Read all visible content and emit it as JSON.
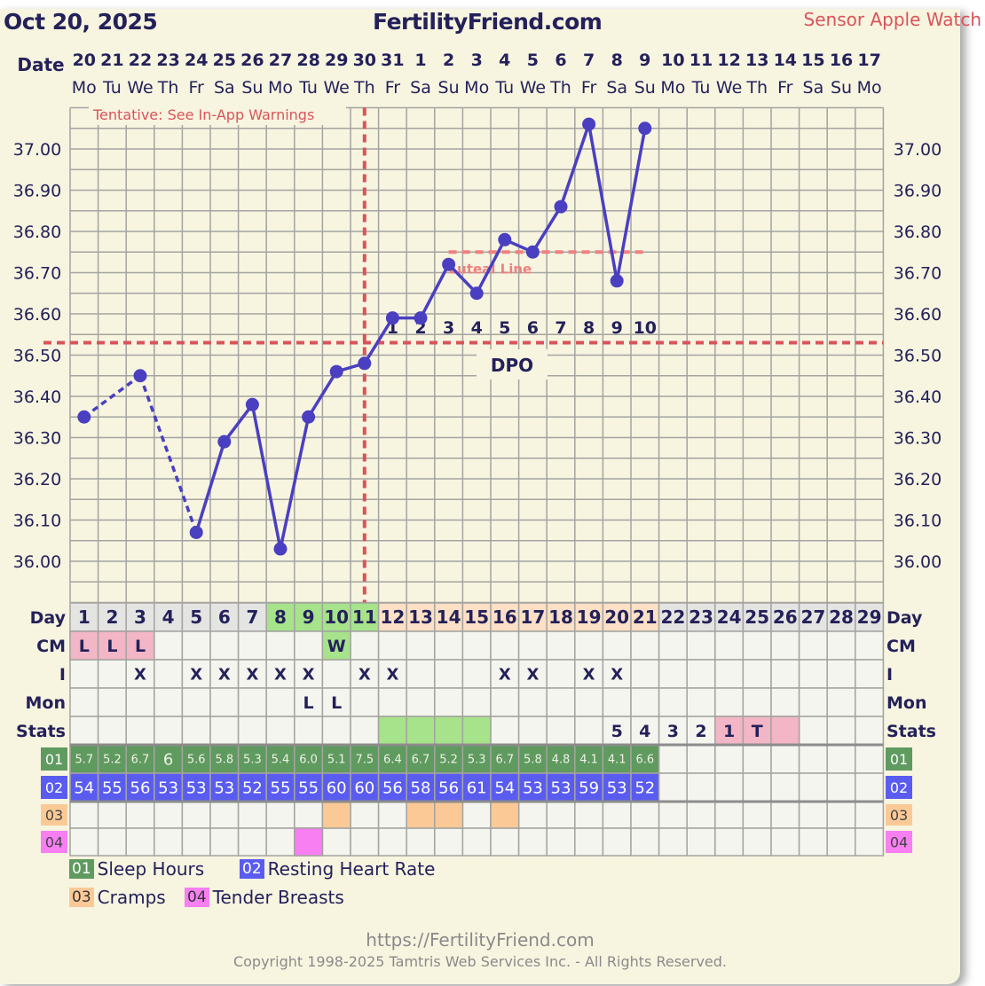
{
  "header": {
    "date": "Oct 20, 2025",
    "site": "FertilityFriend.com",
    "sensor": "Sensor Apple Watch"
  },
  "labels": {
    "date": "Date",
    "day": "Day",
    "cm": "CM",
    "i": "I",
    "mon": "Mon",
    "stats": "Stats",
    "tentative": "Tentative: See In-App Warnings",
    "luteal": "Luteal Line",
    "dpo": "DPO"
  },
  "colors": {
    "line": "#4a3fc0",
    "text": "#24215a",
    "coverline": "#d9545a",
    "luteal": "#f08080",
    "fertile": "#a6e38a",
    "luteal_phase": "#fde0c5",
    "period": "#f2b6c6",
    "sleep": "#5f9a5f",
    "heart": "#5a5cf0",
    "cramps": "#fbc996",
    "tender": "#f77ff2"
  },
  "chart_data": {
    "type": "line",
    "ylim": [
      35.9,
      37.1
    ],
    "yticks": [
      "36.00",
      "36.10",
      "36.20",
      "36.30",
      "36.40",
      "36.50",
      "36.60",
      "36.70",
      "36.80",
      "36.90",
      "37.00"
    ],
    "dates": [
      "20",
      "21",
      "22",
      "23",
      "24",
      "25",
      "26",
      "27",
      "28",
      "29",
      "30",
      "31",
      "1",
      "2",
      "3",
      "4",
      "5",
      "6",
      "7",
      "8",
      "9",
      "10",
      "11",
      "12",
      "13",
      "14",
      "15",
      "16",
      "17"
    ],
    "weekdays": [
      "Mo",
      "Tu",
      "We",
      "Th",
      "Fr",
      "Sa",
      "Su",
      "Mo",
      "Tu",
      "We",
      "Th",
      "Fr",
      "Sa",
      "Su",
      "Mo",
      "Tu",
      "We",
      "Th",
      "Fr",
      "Sa",
      "Su",
      "Mo",
      "Tu",
      "We",
      "Th",
      "Fr",
      "Sa",
      "Su",
      "Mo"
    ],
    "cycle_days": [
      1,
      2,
      3,
      4,
      5,
      6,
      7,
      8,
      9,
      10,
      11,
      12,
      13,
      14,
      15,
      16,
      17,
      18,
      19,
      20,
      21,
      22,
      23,
      24,
      25,
      26,
      27,
      28,
      29
    ],
    "temperatures": [
      36.35,
      null,
      36.45,
      null,
      36.07,
      36.29,
      36.38,
      36.03,
      36.35,
      36.46,
      36.48,
      36.59,
      36.59,
      36.72,
      36.65,
      36.78,
      36.75,
      36.86,
      37.06,
      36.68,
      37.05,
      null,
      null,
      null,
      null,
      null,
      null,
      null,
      null
    ],
    "coverline": 36.53,
    "ovulation_day": 11,
    "luteal_line": {
      "value": 36.75,
      "from_day": 14,
      "to_day": 21
    },
    "dpo": [
      "1",
      "2",
      "3",
      "4",
      "5",
      "6",
      "7",
      "8",
      "9",
      "10"
    ],
    "day_header_colors": [
      "gray",
      "gray",
      "gray",
      "gray",
      "gray",
      "gray",
      "gray",
      "fertile",
      "fertile",
      "fertile",
      "fertile",
      "luteal",
      "luteal",
      "luteal",
      "luteal",
      "luteal",
      "luteal",
      "luteal",
      "luteal",
      "luteal",
      "luteal",
      "gray",
      "gray",
      "gray",
      "gray",
      "gray",
      "gray",
      "gray",
      "gray"
    ],
    "cm": [
      {
        "day": 1,
        "v": "L",
        "c": "period"
      },
      {
        "day": 2,
        "v": "L",
        "c": "period"
      },
      {
        "day": 3,
        "v": "L",
        "c": "period"
      },
      {
        "day": 10,
        "v": "W",
        "c": "fertile"
      }
    ],
    "intercourse": [
      3,
      5,
      6,
      7,
      8,
      9,
      11,
      12,
      16,
      17,
      19,
      20
    ],
    "monitor": [
      {
        "day": 9,
        "v": "L"
      },
      {
        "day": 10,
        "v": "L"
      }
    ],
    "stats": [
      {
        "day": 12,
        "v": "",
        "c": "fertile"
      },
      {
        "day": 13,
        "v": "",
        "c": "fertile"
      },
      {
        "day": 14,
        "v": "",
        "c": "fertile"
      },
      {
        "day": 15,
        "v": "",
        "c": "fertile"
      },
      {
        "day": 20,
        "v": "5"
      },
      {
        "day": 21,
        "v": "4"
      },
      {
        "day": 22,
        "v": "3"
      },
      {
        "day": 23,
        "v": "2"
      },
      {
        "day": 24,
        "v": "1",
        "c": "period"
      },
      {
        "day": 25,
        "v": "T",
        "c": "period"
      },
      {
        "day": 26,
        "v": "",
        "c": "period"
      }
    ],
    "sleep_hours": [
      "5.7",
      "5.2",
      "6.7",
      "6",
      "5.6",
      "5.8",
      "5.3",
      "5.4",
      "6.0",
      "5.1",
      "7.5",
      "6.4",
      "6.7",
      "5.2",
      "5.3",
      "6.7",
      "5.8",
      "4.8",
      "4.1",
      "4.1",
      "6.6"
    ],
    "resting_heart_rate": [
      "54",
      "55",
      "56",
      "53",
      "53",
      "53",
      "52",
      "55",
      "55",
      "60",
      "60",
      "56",
      "58",
      "56",
      "61",
      "54",
      "53",
      "53",
      "59",
      "53",
      "52"
    ],
    "cramps_days": [
      10,
      13,
      14,
      16
    ],
    "tender_breasts_days": [
      9
    ]
  },
  "legend": [
    {
      "code": "01",
      "label": "Sleep Hours"
    },
    {
      "code": "02",
      "label": "Resting Heart Rate"
    },
    {
      "code": "03",
      "label": "Cramps"
    },
    {
      "code": "04",
      "label": "Tender Breasts"
    }
  ],
  "footer": {
    "url": "https://FertilityFriend.com",
    "copyright": "Copyright 1998-2025 Tamtris Web Services Inc. - All Rights Reserved."
  }
}
